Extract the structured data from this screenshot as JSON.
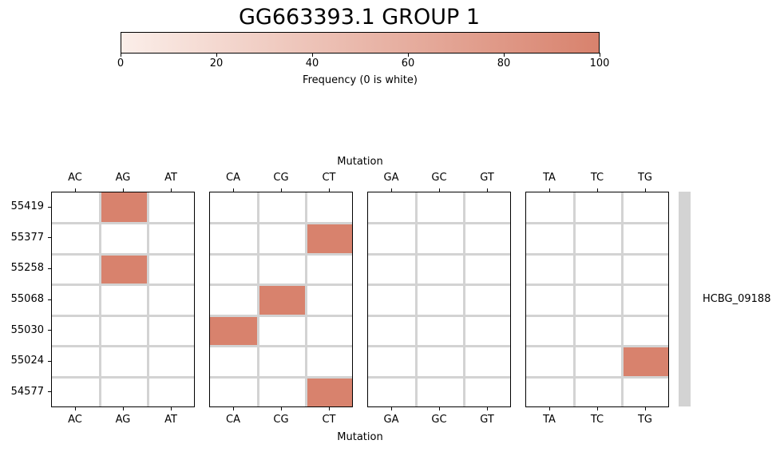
{
  "chart_data": {
    "type": "heatmap",
    "title": "GG663393.1 GROUP 1",
    "xlabel": "Mutation",
    "colorbar": {
      "label": "Frequency (0 is white)",
      "range": [
        0,
        100
      ],
      "ticks": [
        "0",
        "20",
        "40",
        "60",
        "80",
        "100"
      ],
      "color_min": "#fbeee9",
      "color_max": "#d8826d"
    },
    "cell_color": "#d8826d",
    "grid_color": "#d3d3d3",
    "rows": [
      "55419",
      "55377",
      "55258",
      "55068",
      "55030",
      "55024",
      "54577"
    ],
    "groups": [
      {
        "columns": [
          "AC",
          "AG",
          "AT"
        ]
      },
      {
        "columns": [
          "CA",
          "CG",
          "CT"
        ]
      },
      {
        "columns": [
          "GA",
          "GC",
          "GT"
        ]
      },
      {
        "columns": [
          "TA",
          "TC",
          "TG"
        ]
      }
    ],
    "cells": [
      {
        "row": "55419",
        "column": "AG",
        "value": 100
      },
      {
        "row": "55377",
        "column": "CT",
        "value": 100
      },
      {
        "row": "55258",
        "column": "AG",
        "value": 100
      },
      {
        "row": "55068",
        "column": "CG",
        "value": 100
      },
      {
        "row": "55030",
        "column": "CA",
        "value": 100
      },
      {
        "row": "55024",
        "column": "TG",
        "value": 100
      },
      {
        "row": "54577",
        "column": "CT",
        "value": 100
      }
    ],
    "row_group_label": "HCBG_09188"
  }
}
